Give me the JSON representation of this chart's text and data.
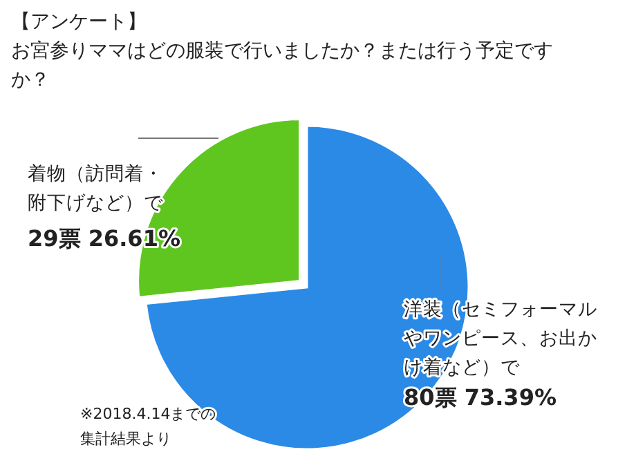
{
  "chart_data": {
    "type": "pie",
    "title": "【アンケート】",
    "subtitle": "お宮参りママはどの服装で行いましたか？または行う予定ですか？",
    "categories": [
      "洋装（セミフォーマルやワンピース、お出かけ着など）で",
      "着物（訪問着・附下げなど）で"
    ],
    "values": [
      80,
      29
    ],
    "value_labels": [
      "80票 73.39%",
      "29票 26.61%"
    ],
    "colors": [
      "#2a8ae6",
      "#5fc61f"
    ],
    "annotations": [
      "※2018.4.14までの集計結果より"
    ]
  }
}
